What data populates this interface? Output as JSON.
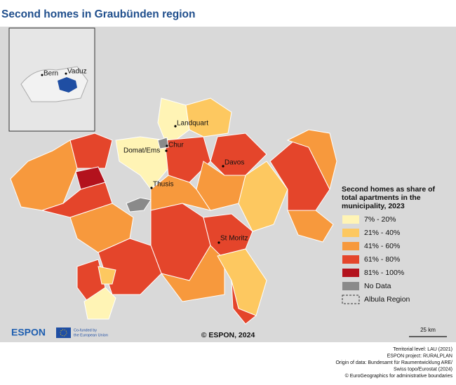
{
  "title": "Second homes in Graubünden region",
  "inset": {
    "labels": [
      "Bern",
      "Vaduz"
    ]
  },
  "map": {
    "places": [
      "Landquart",
      "Chur",
      "Domat/Ems",
      "Davos",
      "Thusis",
      "St Moritz"
    ]
  },
  "legend": {
    "title": [
      "Second homes as share of",
      "total apartments in the",
      "municipality, 2023"
    ],
    "items": [
      {
        "label": "7% - 20%",
        "color": "#fff4b5"
      },
      {
        "label": "21% - 40%",
        "color": "#fdc860"
      },
      {
        "label": "41% - 60%",
        "color": "#f7993d"
      },
      {
        "label": "61% - 80%",
        "color": "#e4452b"
      },
      {
        "label": "81% - 100%",
        "color": "#b3121d"
      },
      {
        "label": "No Data",
        "color": "#8a8a8a"
      },
      {
        "label": "Albula Region",
        "dashed": true
      }
    ]
  },
  "credit": "© ESPON, 2024",
  "scale": "25 km",
  "logo": {
    "name": "ESPON",
    "cofund": [
      "Co-funded by",
      "the European Union"
    ]
  },
  "footer": [
    "Territorial level: LAU (2021)",
    "ESPON project: RURALPLAN",
    "Origin of data: Bundesamt für Raumentwicklung ARE/",
    "Swiss topo/Eurostat (2024)",
    "© EuroGeographics for administrative boundaries"
  ]
}
